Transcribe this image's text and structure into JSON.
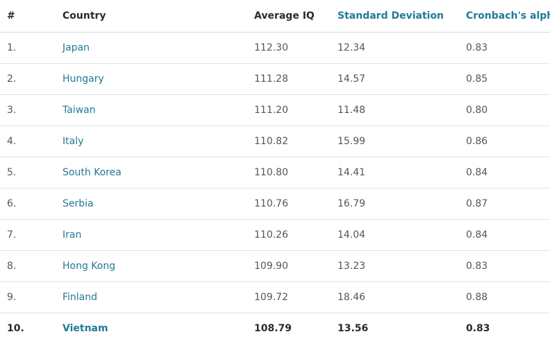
{
  "table": {
    "headers": {
      "rank": "#",
      "country": "Country",
      "average_iq": "Average IQ",
      "standard_deviation": "Standard Deviation",
      "cronbach_alpha": "Cronbach's alpha"
    },
    "rows": [
      {
        "rank": "1.",
        "country": "Japan",
        "average_iq": "112.30",
        "sd": "12.34",
        "alpha": "0.83"
      },
      {
        "rank": "2.",
        "country": "Hungary",
        "average_iq": "111.28",
        "sd": "14.57",
        "alpha": "0.85"
      },
      {
        "rank": "3.",
        "country": "Taiwan",
        "average_iq": "111.20",
        "sd": "11.48",
        "alpha": "0.80"
      },
      {
        "rank": "4.",
        "country": "Italy",
        "average_iq": "110.82",
        "sd": "15.99",
        "alpha": "0.86"
      },
      {
        "rank": "5.",
        "country": "South Korea",
        "average_iq": "110.80",
        "sd": "14.41",
        "alpha": "0.84"
      },
      {
        "rank": "6.",
        "country": "Serbia",
        "average_iq": "110.76",
        "sd": "16.79",
        "alpha": "0.87"
      },
      {
        "rank": "7.",
        "country": "Iran",
        "average_iq": "110.26",
        "sd": "14.04",
        "alpha": "0.84"
      },
      {
        "rank": "8.",
        "country": "Hong Kong",
        "average_iq": "109.90",
        "sd": "13.23",
        "alpha": "0.83"
      },
      {
        "rank": "9.",
        "country": "Finland",
        "average_iq": "109.72",
        "sd": "18.46",
        "alpha": "0.88"
      },
      {
        "rank": "10.",
        "country": "Vietnam",
        "average_iq": "108.79",
        "sd": "13.56",
        "alpha": "0.83"
      }
    ],
    "highlighted_row": 9
  },
  "colors": {
    "link": "#1f7a96",
    "text": "#555555",
    "header_text": "#2b2b2b",
    "divider": "#e4e4e4"
  }
}
